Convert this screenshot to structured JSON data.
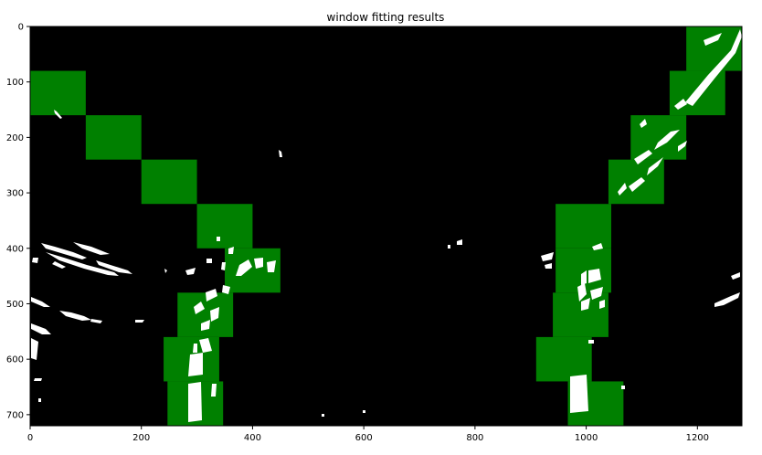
{
  "title": "window fitting results",
  "image_size": {
    "width": 1280,
    "height": 720
  },
  "x_ticks": [
    0,
    200,
    400,
    600,
    800,
    1000,
    1200
  ],
  "y_ticks": [
    0,
    100,
    200,
    300,
    400,
    500,
    600,
    700
  ],
  "colors": {
    "background": "#000000",
    "window": "#008000",
    "pixel": "#ffffff",
    "frame": "#000000"
  },
  "windows": {
    "left": [
      {
        "x0": 0,
        "x1": 100,
        "y0": 80,
        "y1": 160
      },
      {
        "x0": 100,
        "x1": 200,
        "y0": 160,
        "y1": 240
      },
      {
        "x0": 200,
        "x1": 300,
        "y0": 240,
        "y1": 320
      },
      {
        "x0": 300,
        "x1": 400,
        "y0": 320,
        "y1": 400
      },
      {
        "x0": 350,
        "x1": 450,
        "y0": 400,
        "y1": 480
      },
      {
        "x0": 265,
        "x1": 365,
        "y0": 480,
        "y1": 560
      },
      {
        "x0": 240,
        "x1": 340,
        "y0": 560,
        "y1": 640
      },
      {
        "x0": 247,
        "x1": 347,
        "y0": 640,
        "y1": 720
      }
    ],
    "right": [
      {
        "x0": 1180,
        "x1": 1280,
        "y0": 0,
        "y1": 80
      },
      {
        "x0": 1150,
        "x1": 1250,
        "y0": 80,
        "y1": 160
      },
      {
        "x0": 1080,
        "x1": 1180,
        "y0": 160,
        "y1": 240
      },
      {
        "x0": 1040,
        "x1": 1140,
        "y0": 240,
        "y1": 320
      },
      {
        "x0": 945,
        "x1": 1045,
        "y0": 320,
        "y1": 400
      },
      {
        "x0": 945,
        "x1": 1045,
        "y0": 400,
        "y1": 480
      },
      {
        "x0": 940,
        "x1": 1040,
        "y0": 480,
        "y1": 560
      },
      {
        "x0": 910,
        "x1": 1010,
        "y0": 560,
        "y1": 640
      },
      {
        "x0": 967,
        "x1": 1067,
        "y0": 640,
        "y1": 720
      }
    ]
  }
}
